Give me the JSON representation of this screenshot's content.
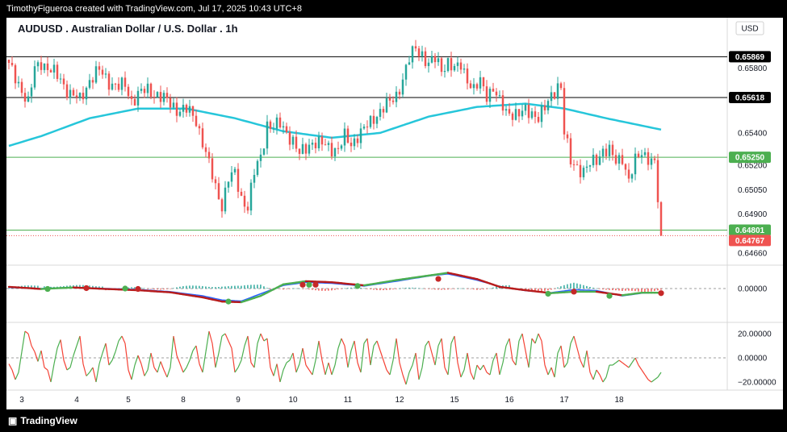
{
  "header": {
    "creator_line": "TimothyFigueroa created with TradingView.com, Jul 17, 2025 10:43 UTC+8"
  },
  "footer": {
    "brand": "TradingView"
  },
  "colors": {
    "up": "#26a69a",
    "down": "#ef5350",
    "ma": "#26c6da",
    "macd_fast": "#2962ff",
    "macd_signal_up": "#4caf50",
    "macd_signal_down": "#b71c1c",
    "osc_up": "#4caf50",
    "osc_down": "#f44336"
  },
  "chart_data": {
    "type": "candlestick",
    "title": "AUDUSD . Australian Dollar / U.S. Dollar . 1h",
    "currency": "USD",
    "price_axis": {
      "ylim": [
        0.6462,
        0.66
      ],
      "ticks": [
        "0.65800",
        "0.65400",
        "0.65200",
        "0.65050",
        "0.64900",
        "0.64660"
      ]
    },
    "x_ticks": [
      "3",
      "4",
      "5",
      "8",
      "9",
      "10",
      "11",
      "12",
      "15",
      "16",
      "17",
      "18"
    ],
    "horizontal_levels": [
      {
        "label": "0.65869",
        "value": 0.65869,
        "kind": "black"
      },
      {
        "label": "0.65618",
        "value": 0.65618,
        "kind": "black"
      },
      {
        "label": "0.65250",
        "value": 0.6525,
        "kind": "green"
      },
      {
        "label": "0.64801",
        "value": 0.64801,
        "kind": "green"
      }
    ],
    "last_price": {
      "label": "0.64767",
      "value": 0.64767
    },
    "price_anchors": [
      [
        0,
        0.6581
      ],
      [
        4,
        0.6567
      ],
      [
        6,
        0.6558
      ],
      [
        8,
        0.6579
      ],
      [
        10,
        0.6584
      ],
      [
        13,
        0.6578
      ],
      [
        16,
        0.6573
      ],
      [
        19,
        0.6564
      ],
      [
        22,
        0.656
      ],
      [
        25,
        0.6573
      ],
      [
        28,
        0.6578
      ],
      [
        31,
        0.6572
      ],
      [
        34,
        0.6568
      ],
      [
        36,
        0.6569
      ],
      [
        38,
        0.656
      ],
      [
        40,
        0.6564
      ],
      [
        43,
        0.6566
      ],
      [
        46,
        0.6564
      ],
      [
        49,
        0.6559
      ],
      [
        52,
        0.6555
      ],
      [
        55,
        0.6554
      ],
      [
        58,
        0.6548
      ],
      [
        60,
        0.6535
      ],
      [
        62,
        0.652
      ],
      [
        64,
        0.6506
      ],
      [
        66,
        0.6496
      ],
      [
        68,
        0.6512
      ],
      [
        70,
        0.6514
      ],
      [
        72,
        0.65
      ],
      [
        74,
        0.6495
      ],
      [
        76,
        0.6515
      ],
      [
        78,
        0.6525
      ],
      [
        80,
        0.6546
      ],
      [
        82,
        0.6543
      ],
      [
        84,
        0.6545
      ],
      [
        86,
        0.6541
      ],
      [
        88,
        0.6535
      ],
      [
        90,
        0.6526
      ],
      [
        92,
        0.6531
      ],
      [
        94,
        0.6535
      ],
      [
        96,
        0.6533
      ],
      [
        98,
        0.6532
      ],
      [
        100,
        0.6531
      ],
      [
        102,
        0.653
      ],
      [
        104,
        0.6537
      ],
      [
        106,
        0.6533
      ],
      [
        108,
        0.6539
      ],
      [
        110,
        0.6542
      ],
      [
        112,
        0.6546
      ],
      [
        114,
        0.6552
      ],
      [
        116,
        0.6556
      ],
      [
        118,
        0.6558
      ],
      [
        120,
        0.6563
      ],
      [
        122,
        0.6574
      ],
      [
        124,
        0.6585
      ],
      [
        126,
        0.6592
      ],
      [
        128,
        0.6589
      ],
      [
        130,
        0.6582
      ],
      [
        132,
        0.6585
      ],
      [
        134,
        0.658
      ],
      [
        136,
        0.6584
      ],
      [
        138,
        0.6578
      ],
      [
        140,
        0.6582
      ],
      [
        142,
        0.6574
      ],
      [
        144,
        0.6566
      ],
      [
        146,
        0.6571
      ],
      [
        148,
        0.6564
      ],
      [
        150,
        0.6568
      ],
      [
        152,
        0.6558
      ],
      [
        154,
        0.6553
      ],
      [
        156,
        0.6553
      ],
      [
        158,
        0.6551
      ],
      [
        160,
        0.6553
      ],
      [
        162,
        0.6553
      ],
      [
        164,
        0.655
      ],
      [
        166,
        0.6554
      ],
      [
        168,
        0.6563
      ],
      [
        170,
        0.657
      ],
      [
        171,
        0.6568
      ],
      [
        172,
        0.654
      ],
      [
        174,
        0.6522
      ],
      [
        176,
        0.652
      ],
      [
        178,
        0.6516
      ],
      [
        180,
        0.652
      ],
      [
        182,
        0.6524
      ],
      [
        184,
        0.653
      ],
      [
        186,
        0.6528
      ],
      [
        188,
        0.6522
      ],
      [
        190,
        0.6526
      ],
      [
        192,
        0.651
      ],
      [
        194,
        0.6522
      ],
      [
        196,
        0.6529
      ],
      [
        198,
        0.6525
      ],
      [
        200,
        0.652
      ],
      [
        202,
        0.6477
      ]
    ],
    "moving_average": [
      [
        0,
        0.6532
      ],
      [
        10,
        0.6538
      ],
      [
        25,
        0.6549
      ],
      [
        40,
        0.6555
      ],
      [
        55,
        0.6555
      ],
      [
        70,
        0.6549
      ],
      [
        85,
        0.6541
      ],
      [
        100,
        0.6537
      ],
      [
        115,
        0.654
      ],
      [
        130,
        0.655
      ],
      [
        145,
        0.6556
      ],
      [
        160,
        0.6558
      ],
      [
        172,
        0.6555
      ],
      [
        185,
        0.6549
      ],
      [
        202,
        0.6542
      ]
    ],
    "macd": {
      "zero_label": "0.00000",
      "ylim": [
        -1,
        1
      ],
      "fast": [
        [
          0,
          0.05
        ],
        [
          10,
          0.0
        ],
        [
          20,
          0.05
        ],
        [
          30,
          0.0
        ],
        [
          40,
          -0.05
        ],
        [
          50,
          -0.15
        ],
        [
          60,
          -0.35
        ],
        [
          66,
          -0.55
        ],
        [
          72,
          -0.6
        ],
        [
          78,
          -0.25
        ],
        [
          85,
          0.15
        ],
        [
          92,
          0.3
        ],
        [
          100,
          0.25
        ],
        [
          110,
          0.12
        ],
        [
          120,
          0.35
        ],
        [
          130,
          0.6
        ],
        [
          136,
          0.7
        ],
        [
          145,
          0.4
        ],
        [
          152,
          0.1
        ],
        [
          160,
          -0.1
        ],
        [
          168,
          -0.2
        ],
        [
          175,
          -0.05
        ],
        [
          182,
          -0.1
        ],
        [
          190,
          -0.35
        ],
        [
          196,
          -0.22
        ],
        [
          202,
          -0.18
        ]
      ],
      "signal": [
        [
          0,
          0.08
        ],
        [
          10,
          -0.02
        ],
        [
          20,
          0.05
        ],
        [
          30,
          -0.02
        ],
        [
          40,
          -0.08
        ],
        [
          50,
          -0.18
        ],
        [
          60,
          -0.42
        ],
        [
          66,
          -0.62
        ],
        [
          72,
          -0.65
        ],
        [
          78,
          -0.35
        ],
        [
          85,
          0.2
        ],
        [
          92,
          0.35
        ],
        [
          100,
          0.3
        ],
        [
          110,
          0.15
        ],
        [
          120,
          0.4
        ],
        [
          130,
          0.62
        ],
        [
          136,
          0.75
        ],
        [
          145,
          0.45
        ],
        [
          152,
          0.08
        ],
        [
          160,
          -0.08
        ],
        [
          168,
          -0.22
        ],
        [
          175,
          -0.15
        ],
        [
          182,
          -0.15
        ],
        [
          190,
          -0.32
        ],
        [
          196,
          -0.2
        ],
        [
          202,
          -0.2
        ]
      ],
      "cross_points": [
        {
          "x": 12,
          "y": -0.02,
          "dir": "up"
        },
        {
          "x": 24,
          "y": 0.02,
          "dir": "down"
        },
        {
          "x": 36,
          "y": 0.0,
          "dir": "up"
        },
        {
          "x": 40,
          "y": -0.02,
          "dir": "down"
        },
        {
          "x": 68,
          "y": -0.62,
          "dir": "up"
        },
        {
          "x": 91,
          "y": 0.18,
          "dir": "down"
        },
        {
          "x": 93,
          "y": 0.18,
          "dir": "up"
        },
        {
          "x": 95,
          "y": 0.18,
          "dir": "down"
        },
        {
          "x": 108,
          "y": 0.12,
          "dir": "up"
        },
        {
          "x": 133,
          "y": 0.46,
          "dir": "down"
        },
        {
          "x": 167,
          "y": -0.25,
          "dir": "up"
        },
        {
          "x": 175,
          "y": -0.15,
          "dir": "down"
        },
        {
          "x": 186,
          "y": -0.35,
          "dir": "up"
        },
        {
          "x": 202,
          "y": -0.22,
          "dir": "down"
        }
      ]
    },
    "oscillator": {
      "ticks": [
        "20.00000",
        "0.00000",
        "−20.00000"
      ],
      "ylim": [
        -25,
        25
      ],
      "values": [
        -5,
        -10,
        -18,
        -12,
        5,
        22,
        20,
        10,
        5,
        -3,
        6,
        -8,
        -10,
        -20,
        -5,
        8,
        15,
        -2,
        -10,
        -8,
        2,
        10,
        18,
        -5,
        -15,
        -12,
        -8,
        -20,
        -5,
        4,
        12,
        -6,
        -2,
        5,
        14,
        18,
        12,
        -10,
        -18,
        -6,
        2,
        -5,
        -15,
        -10,
        4,
        -8,
        -12,
        -3,
        -10,
        -16,
        -8,
        18,
        2,
        -5,
        -12,
        -8,
        -2,
        6,
        10,
        -5,
        -12,
        5,
        22,
        12,
        -8,
        4,
        18,
        20,
        14,
        8,
        -12,
        -8,
        -2,
        10,
        18,
        -4,
        -8,
        12,
        20,
        14,
        16,
        -8,
        -15,
        -5,
        -20,
        -10,
        -4,
        -2,
        4,
        -12,
        -5,
        8,
        -6,
        -10,
        -14,
        -2,
        14,
        -2,
        -14,
        -4,
        -14,
        -6,
        8,
        16,
        10,
        -8,
        6,
        14,
        -4,
        -12,
        12,
        16,
        -6,
        10,
        14,
        6,
        -2,
        -10,
        -14,
        -2,
        16,
        -4,
        -14,
        -22,
        -12,
        -6,
        4,
        -18,
        -8,
        10,
        14,
        4,
        -6,
        10,
        16,
        -8,
        -14,
        12,
        18,
        -4,
        -16,
        -10,
        4,
        -12,
        -18,
        -6,
        -10,
        -6,
        -12,
        -14,
        -2,
        4,
        -14,
        -4,
        10,
        16,
        -2,
        -6,
        14,
        20,
        6,
        -8,
        16,
        12,
        20,
        14,
        -6,
        -14,
        -8,
        -16,
        4,
        10,
        -8,
        -4,
        12,
        18,
        8,
        -2,
        -8,
        6,
        -12,
        -18,
        -10,
        -14,
        -20,
        -16,
        -6,
        -6,
        -4,
        -2,
        -4,
        -6,
        -8,
        -4,
        0,
        -6,
        -10,
        -14,
        -18,
        -20,
        -18,
        -16,
        -12
      ]
    }
  }
}
